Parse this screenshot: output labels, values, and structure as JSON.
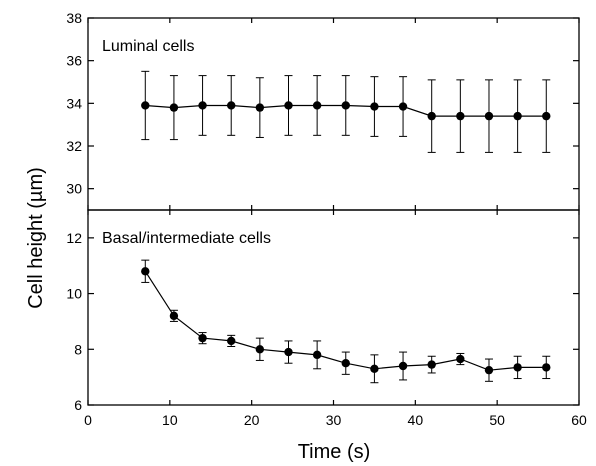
{
  "chart_data": {
    "type": "line",
    "xlabel": "Time (s)",
    "ylabel": "Cell height (µm)",
    "xlim": [
      0,
      60
    ],
    "xticks": [
      "0",
      "10",
      "20",
      "30",
      "40",
      "50",
      "60"
    ],
    "grid": false,
    "panels": [
      {
        "label": "Luminal cells",
        "ylim": [
          29,
          38
        ],
        "yticks": [
          "30",
          "32",
          "34",
          "36",
          "38"
        ],
        "series": [
          {
            "x": [
              7,
              10.5,
              14,
              17.5,
              21,
              24.5,
              28,
              31.5,
              35,
              38.5,
              42,
              45.5,
              49,
              52.5,
              56
            ],
            "y": [
              33.9,
              33.8,
              33.9,
              33.9,
              33.8,
              33.9,
              33.9,
              33.9,
              33.85,
              33.85,
              33.4,
              33.4,
              33.4,
              33.4,
              33.4
            ],
            "err": [
              1.6,
              1.5,
              1.4,
              1.4,
              1.4,
              1.4,
              1.4,
              1.4,
              1.4,
              1.4,
              1.7,
              1.7,
              1.7,
              1.7,
              1.7
            ]
          }
        ]
      },
      {
        "label": "Basal/intermediate cells",
        "ylim": [
          6,
          13
        ],
        "yticks": [
          "6",
          "8",
          "10",
          "12"
        ],
        "series": [
          {
            "x": [
              7,
              10.5,
              14,
              17.5,
              21,
              24.5,
              28,
              31.5,
              35,
              38.5,
              42,
              45.5,
              49,
              52.5,
              56
            ],
            "y": [
              10.8,
              9.2,
              8.4,
              8.3,
              8.0,
              7.9,
              7.8,
              7.5,
              7.3,
              7.4,
              7.45,
              7.65,
              7.25,
              7.35,
              7.35
            ],
            "err": [
              0.4,
              0.2,
              0.2,
              0.2,
              0.4,
              0.4,
              0.5,
              0.4,
              0.5,
              0.5,
              0.3,
              0.2,
              0.4,
              0.4,
              0.4
            ]
          }
        ]
      }
    ]
  }
}
